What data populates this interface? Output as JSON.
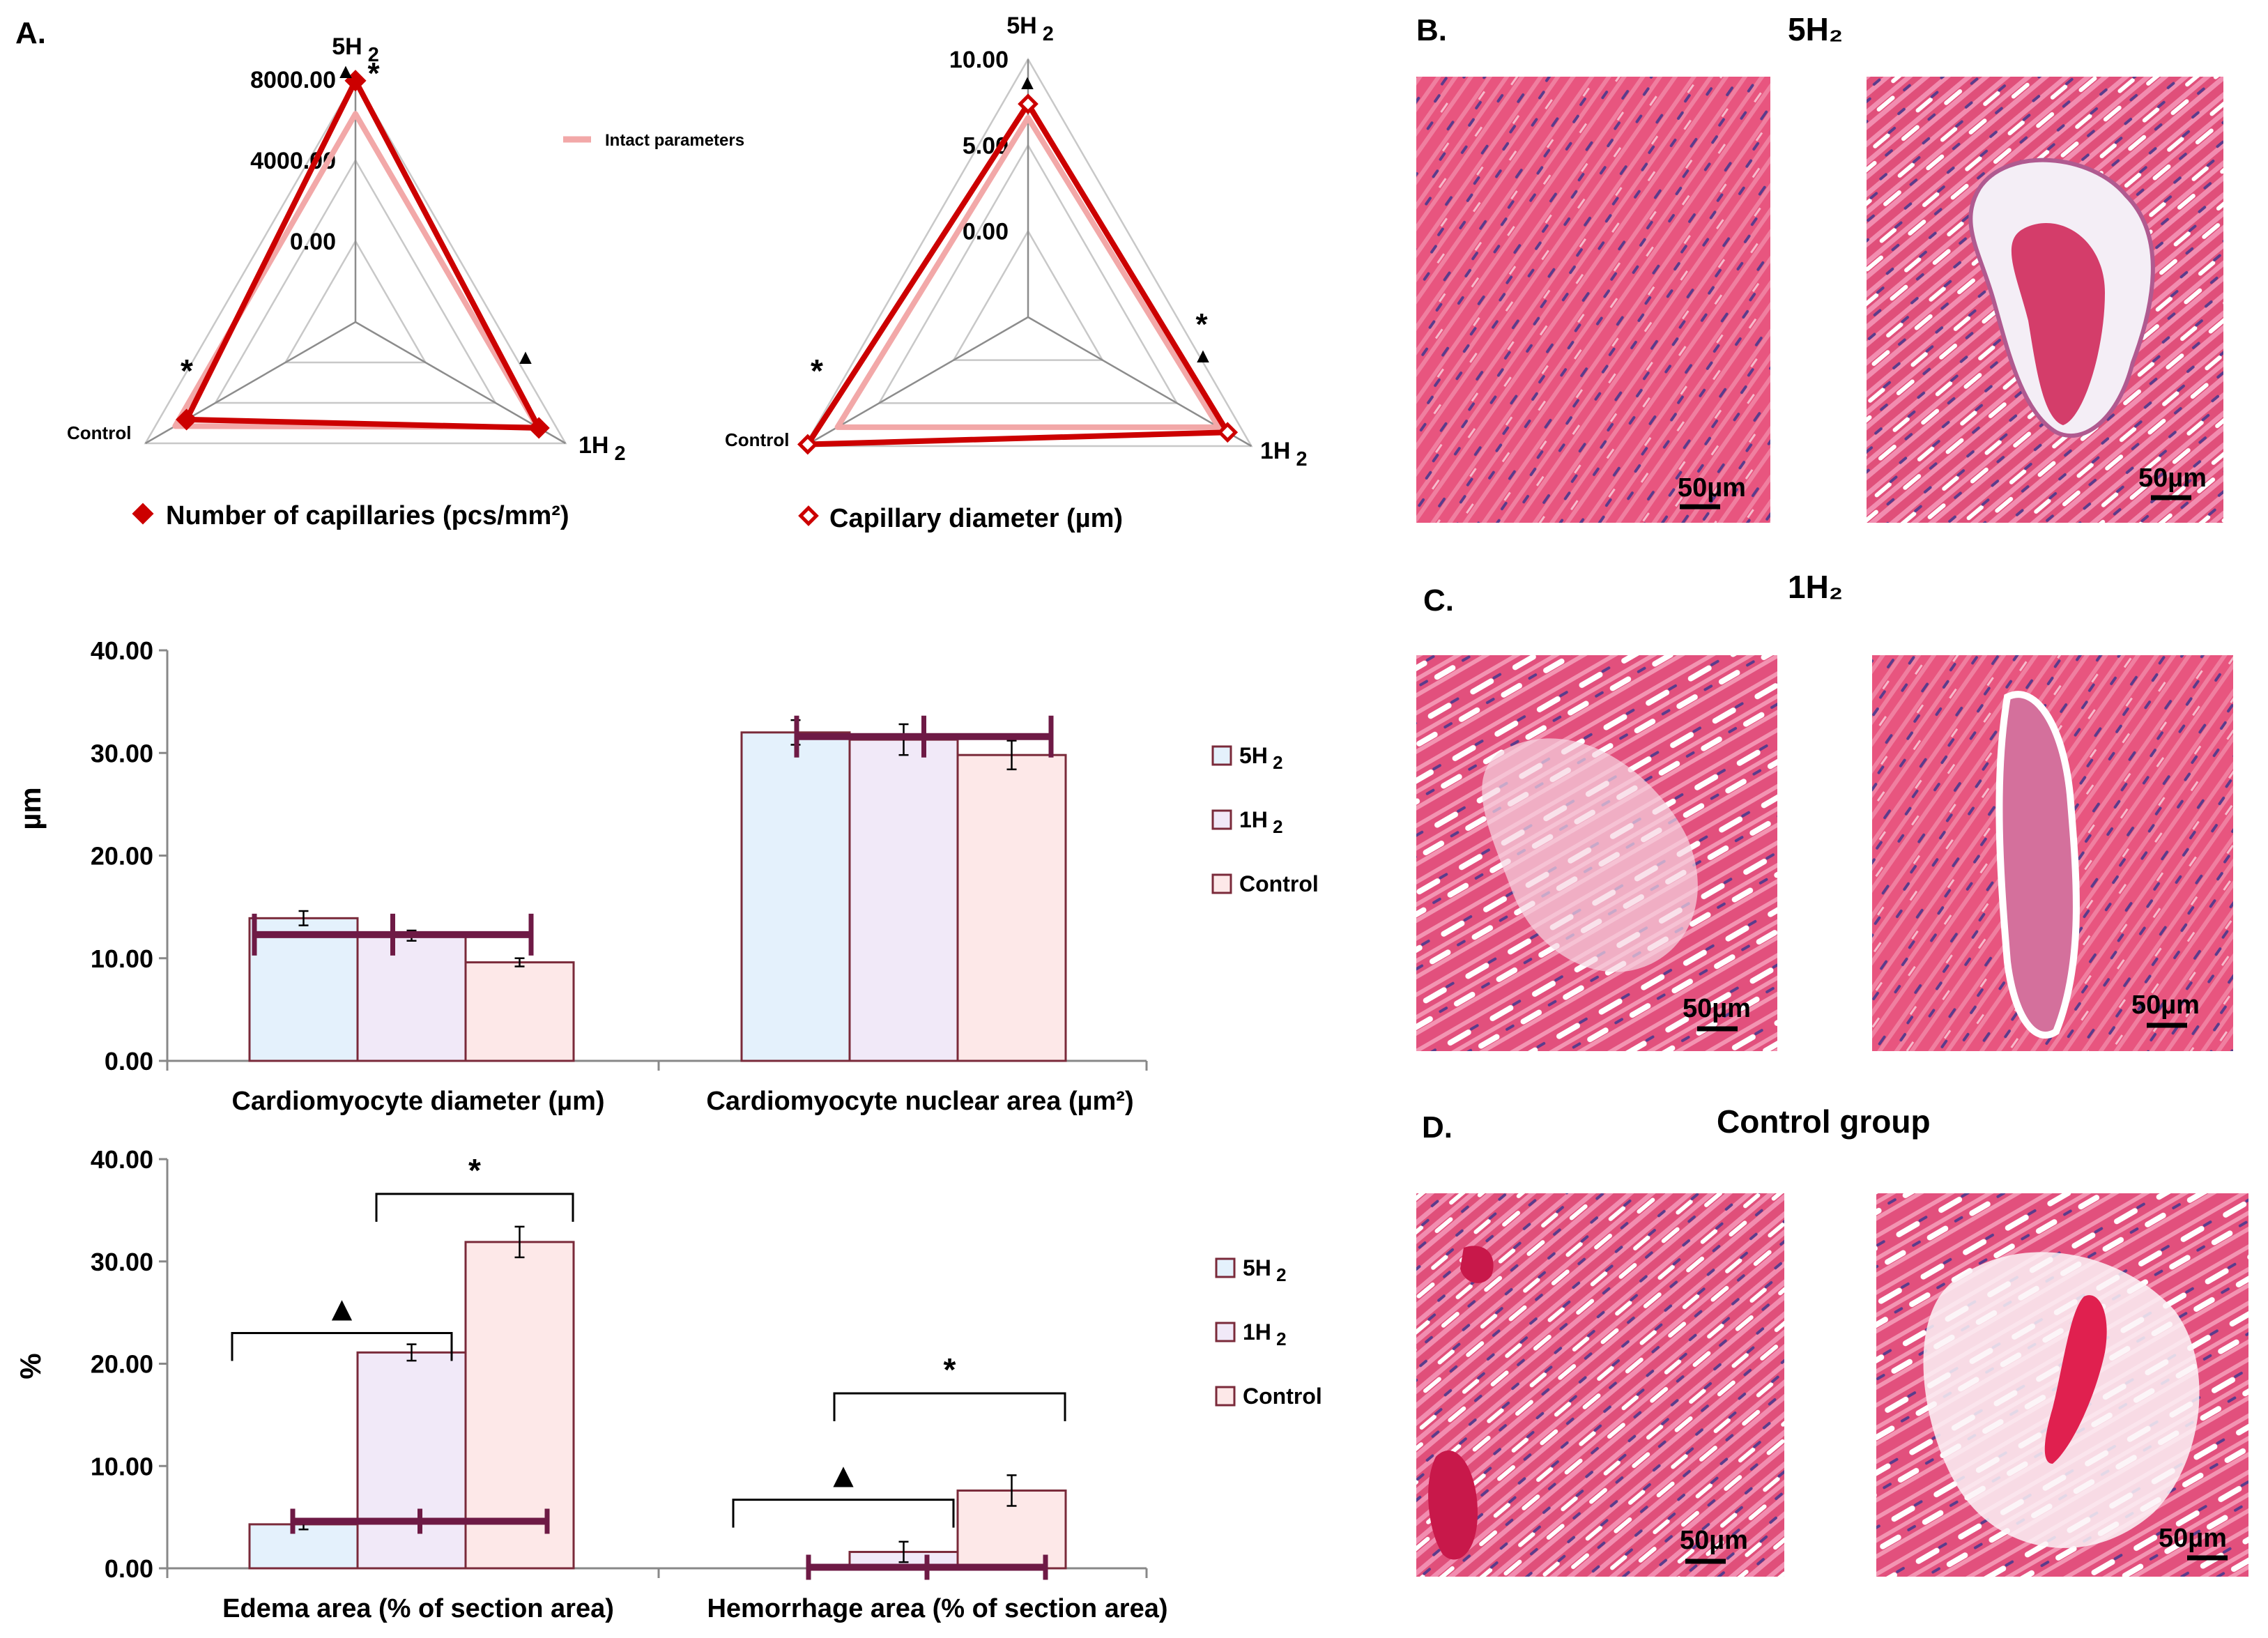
{
  "panel_letters": {
    "a": "A.",
    "b": "B.",
    "c": "C.",
    "d": "D."
  },
  "colors": {
    "red": "#cc0000",
    "pink": "#f2a8a8",
    "marker": "#6e1a45",
    "fill_5h2": "#e4f1fc",
    "fill_1h2": "#f1e9f8",
    "fill_control": "#fde8e8",
    "bar_edge": "#7a2a3a"
  },
  "chart_data": [
    {
      "type": "radar",
      "axes": [
        "5H 2",
        "1H 2",
        "Control"
      ],
      "ticks": [
        "0.00",
        "4000.00",
        "8000.00"
      ],
      "rmax": 8000,
      "series": [
        {
          "name": "Number of capillaries (pcs/mm²)",
          "values": [
            7940,
            6480,
            5650
          ]
        },
        {
          "name": "Intact parameters",
          "values": [
            6300,
            6400,
            6300
          ]
        }
      ],
      "annotations": [
        "▲",
        "*",
        "▲",
        "*"
      ]
    },
    {
      "type": "radar",
      "axes": [
        "5H 2",
        "1H 2",
        "Control"
      ],
      "ticks": [
        "0.00",
        "5.00",
        "10.00"
      ],
      "rmax": 10,
      "series": [
        {
          "name": "Capillary diameter (µm)",
          "values": [
            7.4,
            8.4,
            9.8
          ]
        },
        {
          "name": "Intact parameters",
          "values": [
            6.6,
            7.8,
            7.8
          ]
        }
      ],
      "annotations": [
        "▲",
        "*",
        "▲",
        "*"
      ]
    },
    {
      "type": "bar",
      "ylabel": "µm",
      "ylim": [
        0,
        40
      ],
      "yticks": [
        "0.00",
        "10.00",
        "20.00",
        "30.00",
        "40.00"
      ],
      "categories": [
        "Cardiomyocyte diameter (µm)",
        "Cardiomyocyte nuclear area (µm²)"
      ],
      "series": [
        {
          "name": "5H 2",
          "values": [
            13.9,
            32.0
          ],
          "errors": [
            0.7,
            1.2
          ]
        },
        {
          "name": "1H 2",
          "values": [
            12.2,
            31.3
          ],
          "errors": [
            0.5,
            1.5
          ]
        },
        {
          "name": "Control",
          "values": [
            9.6,
            29.8
          ],
          "errors": [
            0.4,
            1.4
          ]
        }
      ],
      "intact": [
        12.3,
        31.6
      ]
    },
    {
      "type": "bar",
      "ylabel": "%",
      "ylim": [
        0,
        40
      ],
      "yticks": [
        "0.00",
        "10.00",
        "20.00",
        "30.00",
        "40.00"
      ],
      "categories": [
        "Edema area (% of section area)",
        "Hemorrhage area (% of section area)"
      ],
      "series": [
        {
          "name": "5H 2",
          "values": [
            4.3,
            0.0
          ],
          "errors": [
            0.5,
            0
          ]
        },
        {
          "name": "1H 2",
          "values": [
            21.1,
            1.6
          ],
          "errors": [
            0.8,
            1.0
          ]
        },
        {
          "name": "Control",
          "values": [
            31.9,
            7.6
          ],
          "errors": [
            1.5,
            1.5
          ]
        }
      ],
      "intact": [
        4.6,
        0.1
      ],
      "annotations": [
        "▲",
        "*",
        "▲",
        "*"
      ]
    }
  ],
  "legend_intact": "Intact parameters",
  "legend_caps": "Number of capillaries (pcs/mm²)",
  "legend_diam": "Capillary diameter (µm)",
  "photos": {
    "b_title": "5H₂",
    "c_title": "1H₂",
    "d_title": "Control group",
    "scale_bar": "50µm"
  }
}
